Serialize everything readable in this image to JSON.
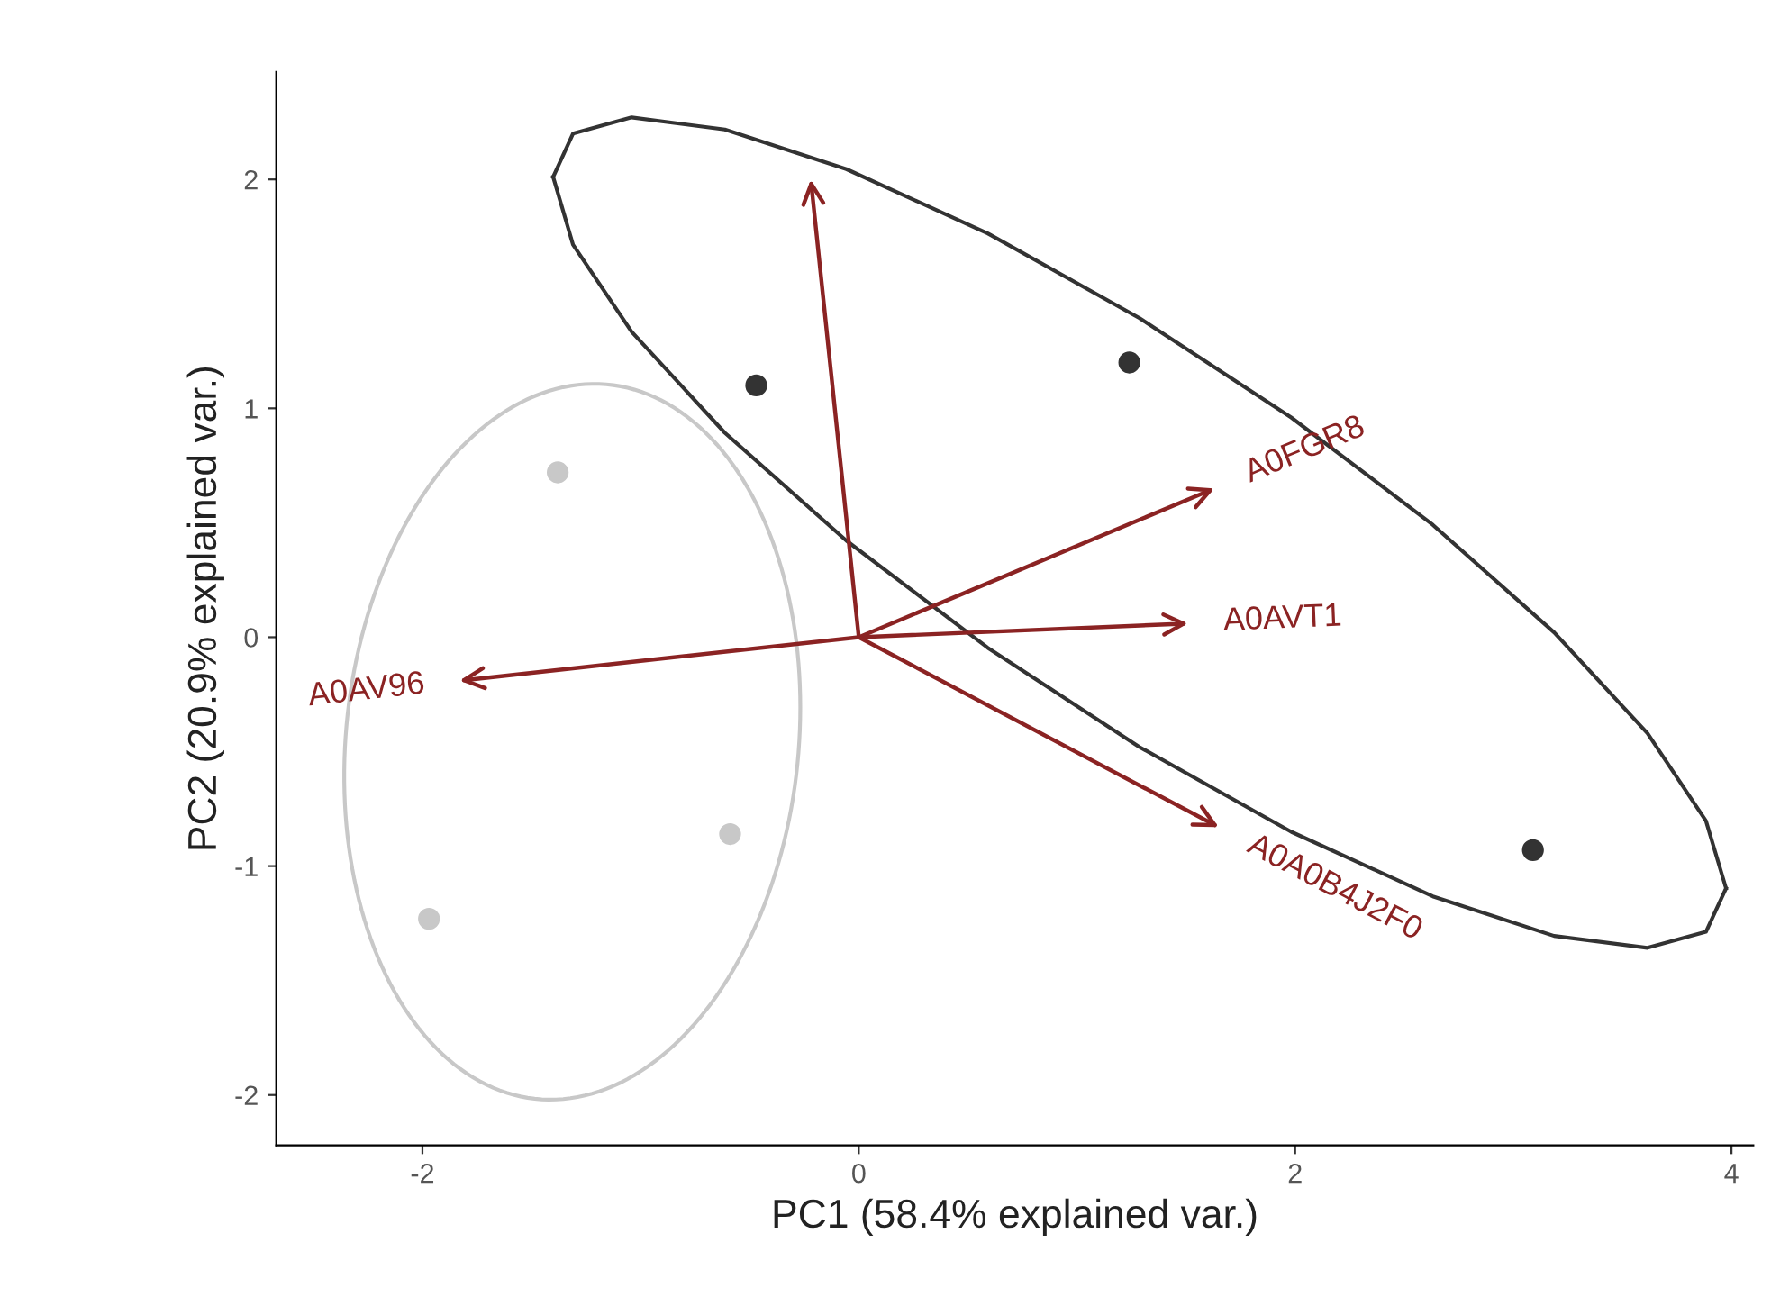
{
  "chart_data": {
    "type": "scatter",
    "xlabel": "PC1 (58.4% explained var.)",
    "ylabel": "PC2 (20.9% explained var.)",
    "xlim": [
      -2.67,
      4.1
    ],
    "ylim": [
      -2.22,
      2.47
    ],
    "xticks": [
      -2,
      0,
      2,
      4
    ],
    "yticks": [
      -2,
      -1,
      0,
      1,
      2
    ],
    "grid": false,
    "marker": "circle",
    "series": [
      {
        "color": "#333333",
        "x": [
          -0.47,
          1.24,
          3.09
        ],
        "values": [
          1.1,
          1.2,
          -0.93
        ]
      },
      {
        "color": "#c8c8c8",
        "x": [
          -1.38,
          -0.59,
          -1.97
        ],
        "values": [
          0.72,
          -0.86,
          -1.23
        ]
      },
      {
        "type": "line",
        "marker": "none",
        "color": "#333333",
        "x": [
          3.975,
          3.883,
          3.615,
          3.187,
          2.631,
          1.982,
          1.287,
          0.591,
          -0.057,
          -0.614,
          -1.041,
          -1.31,
          -1.401
        ],
        "values": [
          -1.097,
          -0.802,
          -0.42,
          0.021,
          0.491,
          0.96,
          1.394,
          1.764,
          2.045,
          2.218,
          2.271,
          2.2,
          2.011
        ]
      },
      {
        "type": "line",
        "marker": "none",
        "color": "#333333",
        "x": [
          -1.401,
          -1.31,
          -1.041,
          -0.614,
          -0.057,
          0.591,
          1.287,
          1.982,
          2.631,
          3.187,
          3.615,
          3.883,
          3.975
        ],
        "values": [
          2.011,
          1.715,
          1.334,
          0.893,
          0.422,
          -0.046,
          -0.48,
          -0.85,
          -1.132,
          -1.305,
          -1.357,
          -1.287,
          -1.097
        ]
      }
    ],
    "annotations": [
      "A0FGR8",
      "A0AVT1",
      "A0A0B4J2F0",
      "A0AV96"
    ]
  }
}
